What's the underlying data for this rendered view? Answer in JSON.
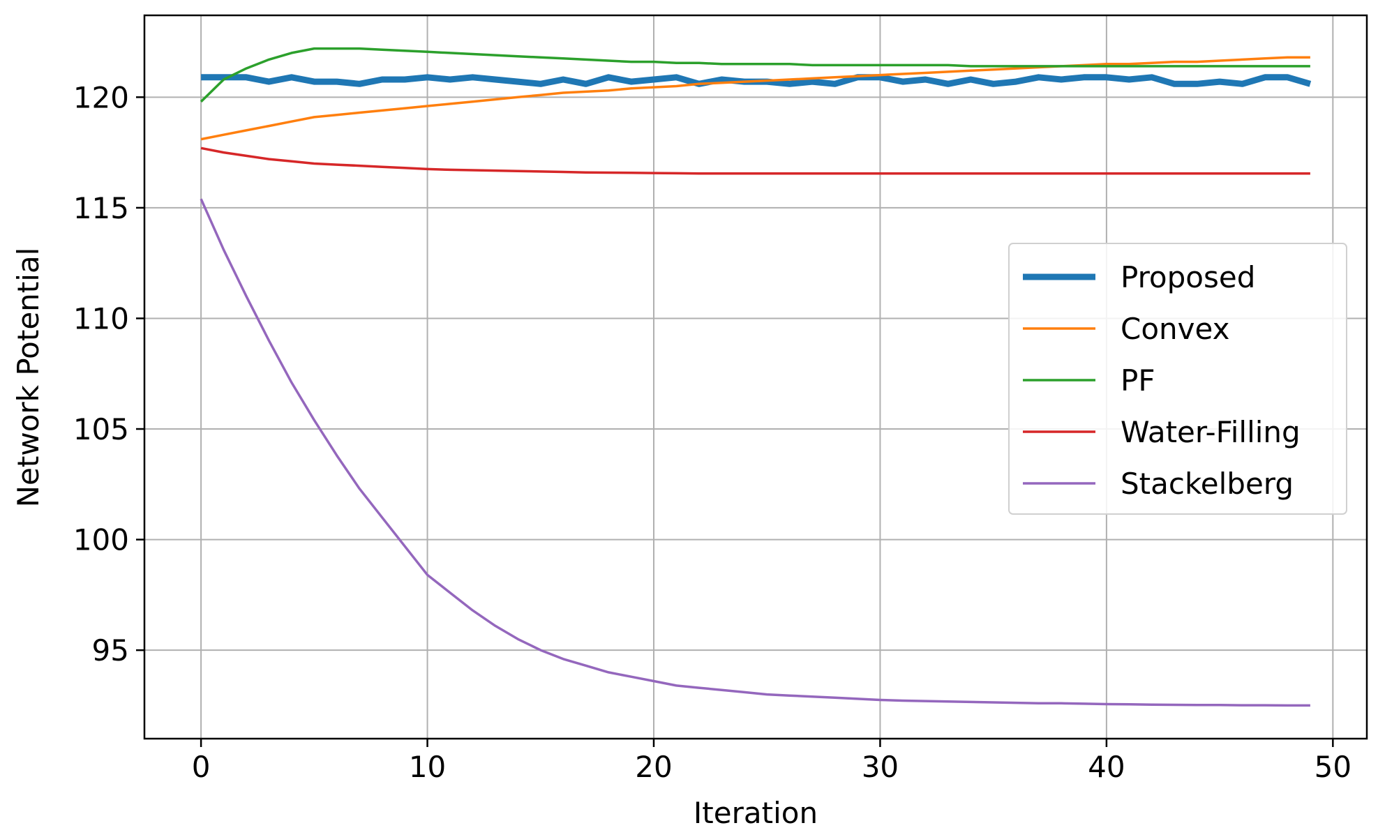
{
  "chart_data": {
    "type": "line",
    "title": "",
    "xlabel": "Iteration",
    "ylabel": "Network Potential",
    "xlim": [
      -2.5,
      51.5
    ],
    "ylim": [
      91,
      123.7
    ],
    "xticks": [
      0,
      10,
      20,
      30,
      40,
      50
    ],
    "yticks": [
      95,
      100,
      105,
      110,
      115,
      120
    ],
    "grid": true,
    "legend_position": "center-right",
    "x": [
      0,
      1,
      2,
      3,
      4,
      5,
      6,
      7,
      8,
      9,
      10,
      11,
      12,
      13,
      14,
      15,
      16,
      17,
      18,
      19,
      20,
      21,
      22,
      23,
      24,
      25,
      26,
      27,
      28,
      29,
      30,
      31,
      32,
      33,
      34,
      35,
      36,
      37,
      38,
      39,
      40,
      41,
      42,
      43,
      44,
      45,
      46,
      47,
      48,
      49
    ],
    "series": [
      {
        "name": "Proposed",
        "color": "#1f77b4",
        "line_width": "thick",
        "values": [
          120.9,
          120.9,
          120.9,
          120.7,
          120.9,
          120.7,
          120.7,
          120.6,
          120.8,
          120.8,
          120.9,
          120.8,
          120.9,
          120.8,
          120.7,
          120.6,
          120.8,
          120.6,
          120.9,
          120.7,
          120.8,
          120.9,
          120.6,
          120.8,
          120.7,
          120.7,
          120.6,
          120.7,
          120.6,
          120.9,
          120.9,
          120.7,
          120.8,
          120.6,
          120.8,
          120.6,
          120.7,
          120.9,
          120.8,
          120.9,
          120.9,
          120.8,
          120.9,
          120.6,
          120.6,
          120.7,
          120.6,
          120.9,
          120.9,
          120.6
        ]
      },
      {
        "name": "Convex",
        "color": "#ff7f0e",
        "line_width": "normal",
        "values": [
          118.1,
          118.3,
          118.5,
          118.7,
          118.9,
          119.1,
          119.2,
          119.3,
          119.4,
          119.5,
          119.6,
          119.7,
          119.8,
          119.9,
          120.0,
          120.1,
          120.2,
          120.25,
          120.3,
          120.4,
          120.45,
          120.5,
          120.6,
          120.65,
          120.7,
          120.75,
          120.8,
          120.85,
          120.9,
          120.95,
          121.0,
          121.05,
          121.1,
          121.15,
          121.2,
          121.25,
          121.3,
          121.35,
          121.4,
          121.45,
          121.5,
          121.5,
          121.55,
          121.6,
          121.6,
          121.65,
          121.7,
          121.75,
          121.8,
          121.8
        ]
      },
      {
        "name": "PF",
        "color": "#2ca02c",
        "line_width": "normal",
        "values": [
          119.8,
          120.8,
          121.3,
          121.7,
          122.0,
          122.2,
          122.2,
          122.2,
          122.15,
          122.1,
          122.05,
          122.0,
          121.95,
          121.9,
          121.85,
          121.8,
          121.75,
          121.7,
          121.65,
          121.6,
          121.6,
          121.55,
          121.55,
          121.5,
          121.5,
          121.5,
          121.5,
          121.45,
          121.45,
          121.45,
          121.45,
          121.45,
          121.45,
          121.45,
          121.4,
          121.4,
          121.4,
          121.4,
          121.4,
          121.4,
          121.4,
          121.4,
          121.4,
          121.4,
          121.4,
          121.4,
          121.4,
          121.4,
          121.4,
          121.4
        ]
      },
      {
        "name": "Water-Filling",
        "color": "#d62728",
        "line_width": "normal",
        "values": [
          117.7,
          117.5,
          117.35,
          117.2,
          117.1,
          117.0,
          116.95,
          116.9,
          116.85,
          116.8,
          116.75,
          116.72,
          116.7,
          116.68,
          116.66,
          116.64,
          116.62,
          116.6,
          116.59,
          116.58,
          116.57,
          116.56,
          116.55,
          116.55,
          116.55,
          116.55,
          116.55,
          116.55,
          116.55,
          116.55,
          116.55,
          116.55,
          116.55,
          116.55,
          116.55,
          116.55,
          116.55,
          116.55,
          116.55,
          116.55,
          116.55,
          116.55,
          116.55,
          116.55,
          116.55,
          116.55,
          116.55,
          116.55,
          116.55,
          116.55
        ]
      },
      {
        "name": "Stackelberg",
        "color": "#9467bd",
        "line_width": "normal",
        "values": [
          115.4,
          113.1,
          111.0,
          109.0,
          107.1,
          105.4,
          103.8,
          102.3,
          101.0,
          99.7,
          98.4,
          97.6,
          96.8,
          96.1,
          95.5,
          95.0,
          94.6,
          94.3,
          94.0,
          93.8,
          93.6,
          93.4,
          93.3,
          93.2,
          93.1,
          93.0,
          92.95,
          92.9,
          92.85,
          92.8,
          92.75,
          92.72,
          92.7,
          92.68,
          92.66,
          92.64,
          92.62,
          92.6,
          92.6,
          92.58,
          92.56,
          92.55,
          92.54,
          92.53,
          92.52,
          92.52,
          92.51,
          92.51,
          92.5,
          92.5
        ]
      }
    ]
  }
}
